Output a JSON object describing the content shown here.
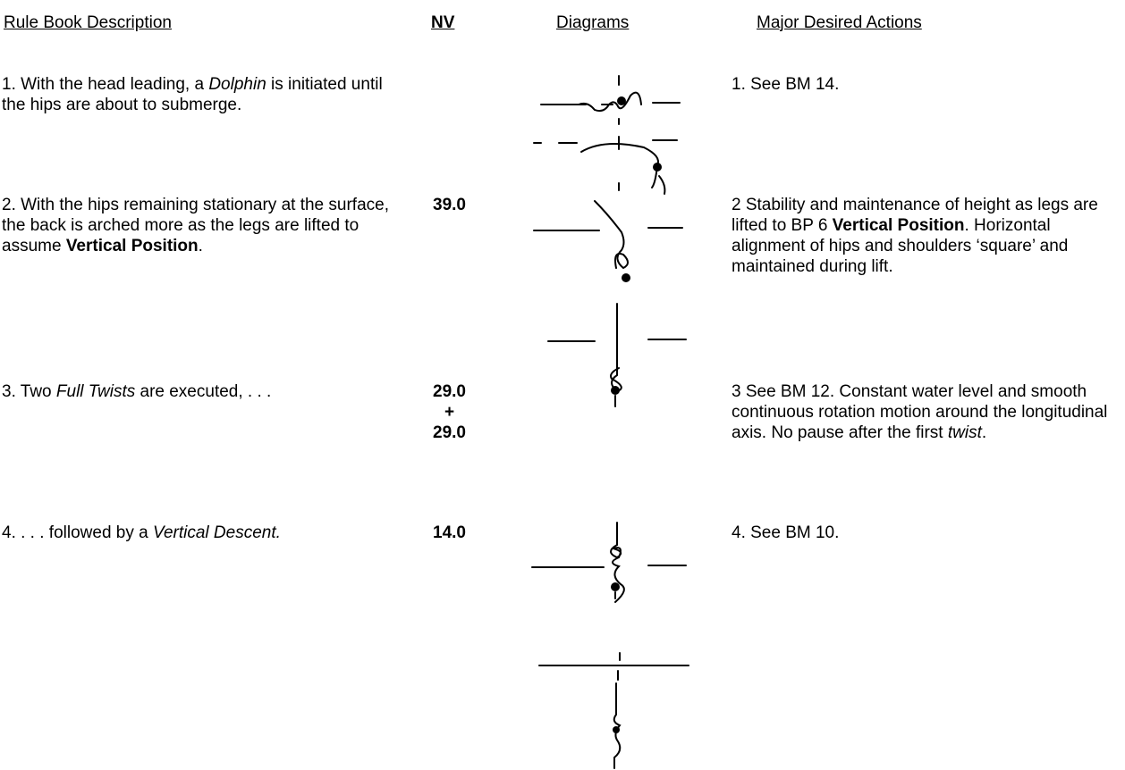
{
  "header": {
    "columns": [
      "Rule Book Description",
      "NV",
      "Diagrams",
      "Major Desired Actions"
    ]
  },
  "rows": [
    {
      "description": [
        "1.  With the head leading, a ",
        "Dolphin",
        " is initiated until the hips are about to submerge."
      ],
      "action": [
        "1.  See BM 14."
      ]
    },
    {
      "description": [
        "2.  With the hips remaining stationary at the surface, the back is arched more as the legs are lifted to assume ",
        "Vertical Position",
        "."
      ],
      "nv": [
        "39.0"
      ],
      "action": [
        "2 Stability and maintenance of height as legs are lifted to BP 6 ",
        "Vertical Position",
        ". Horizontal alignment of hips and shoulders ‘square’ and maintained during lift."
      ]
    },
    {
      "description": [
        "3.  Two ",
        "Full Twists",
        " are executed, . . ."
      ],
      "nv": [
        "29.0",
        "+",
        "29.0"
      ],
      "action": [
        "3 See BM 12.  Constant water level and smooth continuous rotation motion around the longitudinal axis. No pause after the first ",
        "twist",
        "."
      ]
    },
    {
      "description": [
        "4. . . . followed by a ",
        "Vertical Descent."
      ],
      "nv": [
        "14.0"
      ],
      "action": [
        "4.  See BM 10."
      ]
    }
  ]
}
